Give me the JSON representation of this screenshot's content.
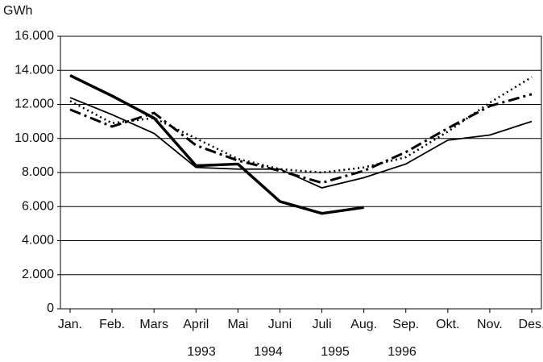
{
  "chart_data": {
    "type": "line",
    "y_label": "GWh",
    "categories": [
      "Jan.",
      "Feb.",
      "Mars",
      "April",
      "Mai",
      "Juni",
      "Juli",
      "Aug.",
      "Sep.",
      "Okt.",
      "Nov.",
      "Des."
    ],
    "series": [
      {
        "name": "1993",
        "color": "#000000",
        "style": "thin",
        "values": [
          12400,
          11400,
          10300,
          8300,
          8200,
          8200,
          7100,
          7700,
          8500,
          9900,
          10200,
          11000
        ]
      },
      {
        "name": "1994",
        "color": "#000000",
        "style": "dashdot",
        "values": [
          11700,
          10700,
          11500,
          9600,
          8700,
          8100,
          7400,
          8100,
          9200,
          10600,
          11900,
          12600
        ]
      },
      {
        "name": "1995",
        "color": "#000000",
        "style": "dotted",
        "values": [
          12200,
          10900,
          11200,
          10000,
          8800,
          8200,
          8000,
          8300,
          8900,
          10400,
          12100,
          13600
        ]
      },
      {
        "name": "1996",
        "color": "#000000",
        "style": "thick",
        "values": [
          13700,
          12500,
          11200,
          8400,
          8500,
          6300,
          5600,
          5950,
          null,
          null,
          null,
          null
        ]
      }
    ],
    "ylim": [
      0,
      16000
    ],
    "yticks": [
      0,
      {
        "value": 2000,
        "label": "2.000"
      },
      {
        "value": 4000,
        "label": "4.000"
      },
      {
        "value": 6000,
        "label": "6.000"
      },
      {
        "value": 8000,
        "label": "8.000"
      },
      {
        "value": 10000,
        "label": "10.000"
      },
      {
        "value": 12000,
        "label": "12.000"
      },
      {
        "value": 14000,
        "label": "14.000"
      },
      {
        "value": 16000,
        "label": "16.000"
      }
    ],
    "grid": true,
    "legend": "bottom"
  }
}
